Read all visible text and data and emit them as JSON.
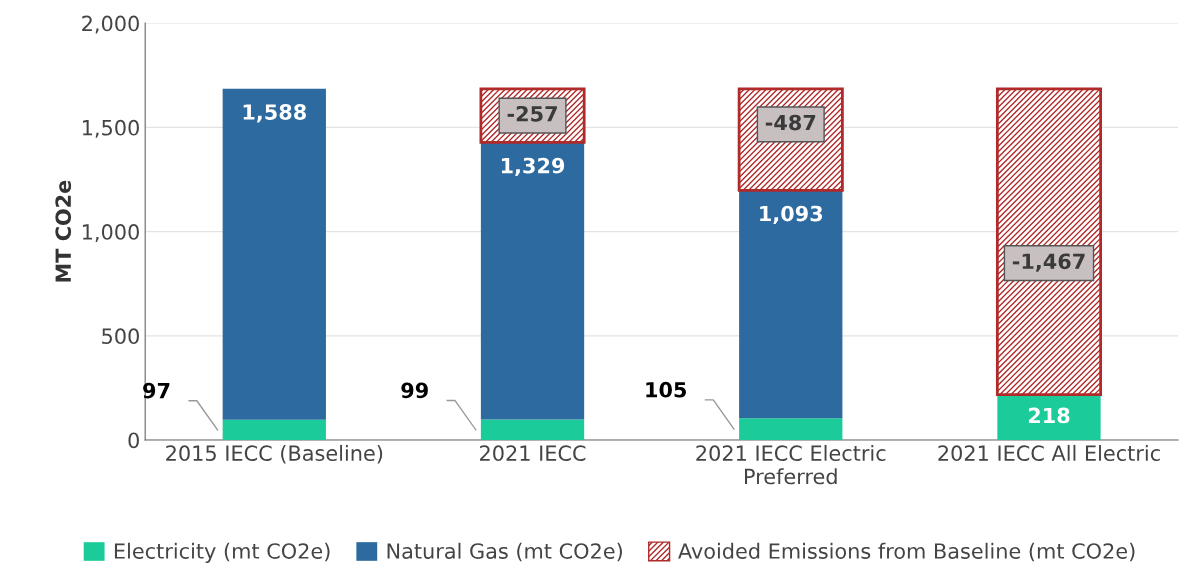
{
  "chart_data": {
    "type": "bar",
    "stacked": true,
    "ylabel": "MT CO2e",
    "categories": [
      "2015 IECC (Baseline)",
      "2021 IECC",
      "2021 IECC Electric Preferred",
      "2021 IECC All Electric"
    ],
    "series": [
      {
        "name": "Electricity (mt CO2e)",
        "color": "#1ccb9a",
        "values": [
          97,
          99,
          105,
          218
        ],
        "value_labels": [
          "97",
          "99",
          "105",
          "218"
        ]
      },
      {
        "name": "Natural Gas (mt CO2e)",
        "color": "#2c6aa0",
        "values": [
          1588,
          1329,
          1093,
          null
        ],
        "value_labels": [
          "1,588",
          "1,329",
          "1,093",
          null
        ]
      },
      {
        "name": "Avoided Emissions from Baseline (mt CO2e)",
        "color": "#b02a2a",
        "base": [
          null,
          1685,
          1685,
          1685
        ],
        "values": [
          null,
          -257,
          -487,
          -1467
        ],
        "value_labels": [
          null,
          "-257",
          "-487",
          "-1,467"
        ]
      }
    ],
    "ylim": [
      0,
      2000
    ],
    "yticks": [
      0,
      500,
      {
        "value": 1000,
        "label": "1,000"
      },
      {
        "value": 1500,
        "label": "1,500"
      },
      {
        "value": 2000,
        "label": "2,000"
      }
    ],
    "grid": "y",
    "legend": "bottom"
  }
}
